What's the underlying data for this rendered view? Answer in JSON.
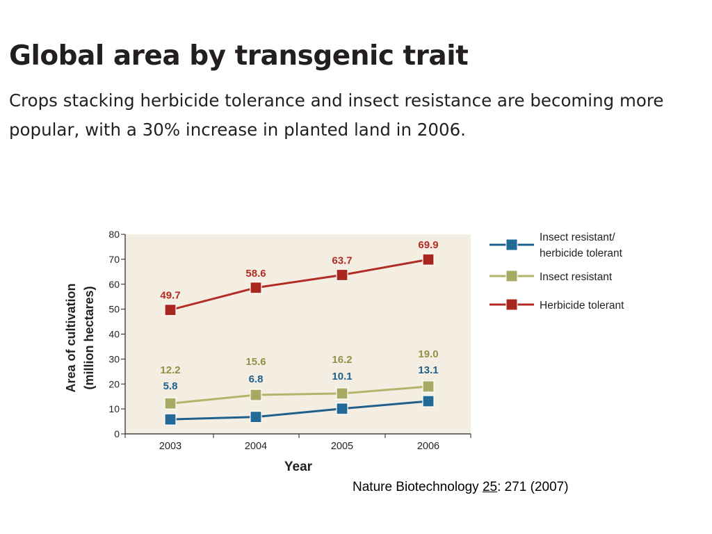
{
  "header": {
    "title": "Global area by transgenic trait",
    "subtitle": "Crops stacking herbicide tolerance and insect resistance are becoming more popular, with a 30% increase in planted land in 2006."
  },
  "citation": {
    "journal": "Nature Biotechnology ",
    "volume": "25",
    "rest": ": 271 (2007)"
  },
  "chart_data": {
    "type": "line",
    "title": "Global area by transgenic trait",
    "xlabel": "Year",
    "ylabel_line1": "Area of cultivation",
    "ylabel_line2": "(million hectares)",
    "categories": [
      "2003",
      "2004",
      "2005",
      "2006"
    ],
    "ylim": [
      0,
      80
    ],
    "yticks": [
      0,
      10,
      20,
      30,
      40,
      50,
      60,
      70,
      80
    ],
    "grid": false,
    "legend_position": "right",
    "series": [
      {
        "name": "Insect resistant/ herbicide tolerant",
        "legend_lines": [
          "Insect resistant/",
          "herbicide tolerant"
        ],
        "values": [
          5.8,
          6.8,
          10.1,
          13.1
        ],
        "labels": [
          "5.8",
          "6.8",
          "10.1",
          "13.1"
        ],
        "color": "#1f5f8b",
        "marker_color": "#236a96"
      },
      {
        "name": "Insect resistant",
        "legend_lines": [
          "Insect resistant"
        ],
        "values": [
          12.2,
          15.6,
          16.2,
          19.0
        ],
        "labels": [
          "12.2",
          "15.6",
          "16.2",
          "19.0"
        ],
        "color": "#b3b46a",
        "marker_color": "#a8aa63",
        "label_color": "#8f9147"
      },
      {
        "name": "Herbicide tolerant",
        "legend_lines": [
          "Herbicide tolerant"
        ],
        "values": [
          49.7,
          58.6,
          63.7,
          69.9
        ],
        "labels": [
          "49.7",
          "58.6",
          "63.7",
          "69.9"
        ],
        "color": "#b32b25",
        "marker_color": "#a9271f"
      }
    ],
    "plot_background": "#f3eee1"
  }
}
